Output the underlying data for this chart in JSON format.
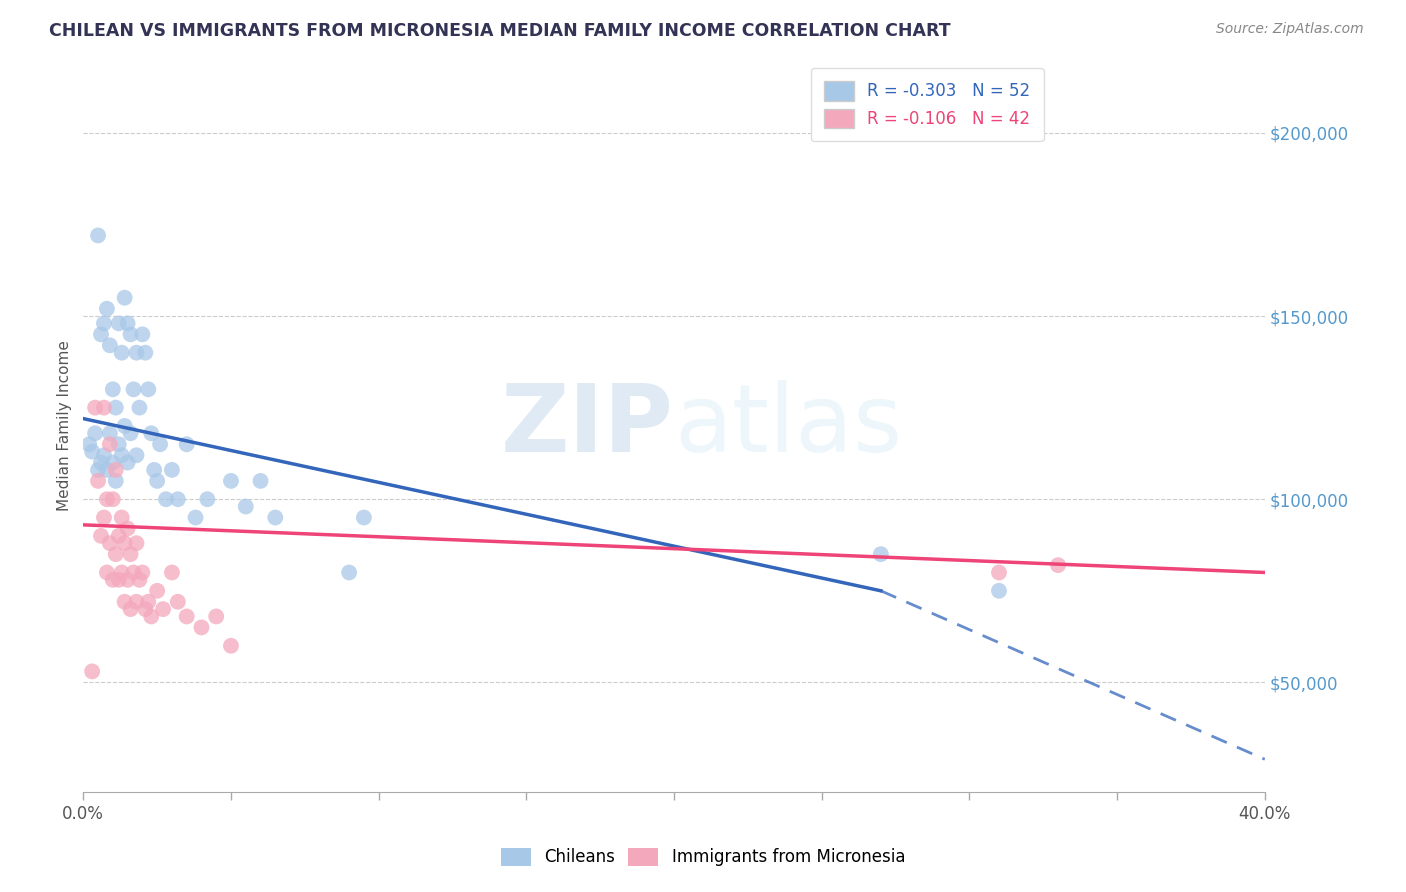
{
  "title": "CHILEAN VS IMMIGRANTS FROM MICRONESIA MEDIAN FAMILY INCOME CORRELATION CHART",
  "source": "Source: ZipAtlas.com",
  "ylabel": "Median Family Income",
  "xlim": [
    0.0,
    0.4
  ],
  "ylim": [
    20000,
    220000
  ],
  "ytick_values": [
    50000,
    100000,
    150000,
    200000
  ],
  "xtick_values": [
    0.0,
    0.05,
    0.1,
    0.15,
    0.2,
    0.25,
    0.3,
    0.35,
    0.4
  ],
  "blue_R": -0.303,
  "blue_N": 52,
  "pink_R": -0.106,
  "pink_N": 42,
  "blue_color": "#a8c8e8",
  "pink_color": "#f4a8bc",
  "trendline_blue": "#3366bb",
  "trendline_pink": "#ee4477",
  "watermark_zip": "ZIP",
  "watermark_atlas": "atlas",
  "legend_label_blue": "Chileans",
  "legend_label_pink": "Immigrants from Micronesia",
  "blue_trend_x0": 0.0,
  "blue_trend_y0": 122000,
  "blue_trend_x1": 0.27,
  "blue_trend_y1": 75000,
  "blue_trend_x2": 0.4,
  "blue_trend_y2": 29000,
  "pink_trend_x0": 0.0,
  "pink_trend_y0": 93000,
  "pink_trend_x1": 0.4,
  "pink_trend_y1": 80000,
  "blue_x": [
    0.002,
    0.003,
    0.004,
    0.005,
    0.005,
    0.006,
    0.006,
    0.007,
    0.007,
    0.008,
    0.008,
    0.009,
    0.009,
    0.01,
    0.01,
    0.011,
    0.011,
    0.012,
    0.012,
    0.013,
    0.013,
    0.014,
    0.014,
    0.015,
    0.015,
    0.016,
    0.016,
    0.017,
    0.018,
    0.018,
    0.019,
    0.02,
    0.021,
    0.022,
    0.023,
    0.024,
    0.025,
    0.026,
    0.028,
    0.03,
    0.032,
    0.035,
    0.038,
    0.042,
    0.05,
    0.055,
    0.06,
    0.065,
    0.09,
    0.095,
    0.27,
    0.31
  ],
  "blue_y": [
    115000,
    113000,
    118000,
    172000,
    108000,
    145000,
    110000,
    148000,
    112000,
    152000,
    108000,
    142000,
    118000,
    130000,
    110000,
    125000,
    105000,
    148000,
    115000,
    140000,
    112000,
    155000,
    120000,
    148000,
    110000,
    145000,
    118000,
    130000,
    140000,
    112000,
    125000,
    145000,
    140000,
    130000,
    118000,
    108000,
    105000,
    115000,
    100000,
    108000,
    100000,
    115000,
    95000,
    100000,
    105000,
    98000,
    105000,
    95000,
    80000,
    95000,
    85000,
    75000
  ],
  "pink_x": [
    0.003,
    0.004,
    0.005,
    0.006,
    0.007,
    0.007,
    0.008,
    0.008,
    0.009,
    0.009,
    0.01,
    0.01,
    0.011,
    0.011,
    0.012,
    0.012,
    0.013,
    0.013,
    0.014,
    0.014,
    0.015,
    0.015,
    0.016,
    0.016,
    0.017,
    0.018,
    0.018,
    0.019,
    0.02,
    0.021,
    0.022,
    0.023,
    0.025,
    0.027,
    0.03,
    0.032,
    0.035,
    0.04,
    0.045,
    0.05,
    0.31,
    0.33
  ],
  "pink_y": [
    53000,
    125000,
    105000,
    90000,
    125000,
    95000,
    100000,
    80000,
    115000,
    88000,
    100000,
    78000,
    108000,
    85000,
    90000,
    78000,
    95000,
    80000,
    88000,
    72000,
    92000,
    78000,
    85000,
    70000,
    80000,
    88000,
    72000,
    78000,
    80000,
    70000,
    72000,
    68000,
    75000,
    70000,
    80000,
    72000,
    68000,
    65000,
    68000,
    60000,
    80000,
    82000
  ]
}
